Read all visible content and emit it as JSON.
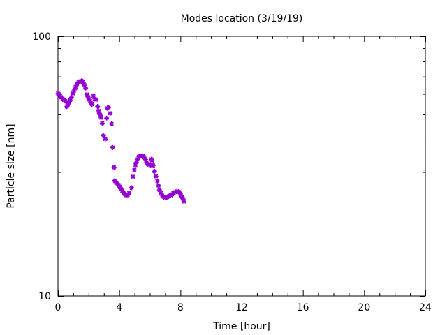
{
  "chart_data": {
    "type": "scatter",
    "title": "Modes location (3/19/19)",
    "xlabel": "Time [hour]",
    "ylabel": "Particle size [nm]",
    "xlim": [
      0,
      24
    ],
    "ylim": [
      10,
      100
    ],
    "yscale": "log",
    "xticks": [
      0,
      4,
      8,
      12,
      16,
      20,
      24
    ],
    "xtick_labels": [
      "0",
      "4",
      "8",
      "12",
      "16",
      "20",
      "24"
    ],
    "yticks": [
      10,
      100
    ],
    "ytick_labels": [
      "10",
      "100"
    ],
    "grid": false,
    "marker_color": "#9400d3",
    "series": [
      {
        "name": "modes",
        "x": [
          0.0,
          0.06,
          0.14,
          0.21,
          0.3,
          0.4,
          0.49,
          0.58,
          0.65,
          0.7,
          0.79,
          0.88,
          0.97,
          1.05,
          1.13,
          1.19,
          1.25,
          1.34,
          1.43,
          1.54,
          1.61,
          1.69,
          1.73,
          1.81,
          1.89,
          1.95,
          2.02,
          2.1,
          2.16,
          2.22,
          2.31,
          2.4,
          2.49,
          2.59,
          2.66,
          2.71,
          2.77,
          2.81,
          2.89,
          2.98,
          3.09,
          3.18,
          3.22,
          3.31,
          3.41,
          3.5,
          3.57,
          3.66,
          3.71,
          3.79,
          3.89,
          3.98,
          4.05,
          4.12,
          4.2,
          4.29,
          4.38,
          4.47,
          4.56,
          4.65,
          4.81,
          4.9,
          4.99,
          5.06,
          5.12,
          5.2,
          5.29,
          5.41,
          5.54,
          5.63,
          5.72,
          5.79,
          5.87,
          5.96,
          6.05,
          6.1,
          6.14,
          6.22,
          6.31,
          6.4,
          6.49,
          6.57,
          6.63,
          6.72,
          6.81,
          6.9,
          7.01,
          7.12,
          7.24,
          7.36,
          7.45,
          7.54,
          7.65,
          7.77,
          7.88,
          7.97,
          8.04,
          8.12,
          8.18,
          8.23
        ],
        "y": [
          60.2,
          59.8,
          59.0,
          58.2,
          57.5,
          56.8,
          56.3,
          53.6,
          54.6,
          55.7,
          56.8,
          58.2,
          60.2,
          61.7,
          63.2,
          64.6,
          65.6,
          66.5,
          67.0,
          67.4,
          66.7,
          65.6,
          64.8,
          63.2,
          59.7,
          58.5,
          57.3,
          56.3,
          55.7,
          54.7,
          59.0,
          57.5,
          57.0,
          53.7,
          51.6,
          50.5,
          49.6,
          48.6,
          46.3,
          41.4,
          40.2,
          48.4,
          52.8,
          53.2,
          50.5,
          46.0,
          37.3,
          31.3,
          27.8,
          27.3,
          27.1,
          26.7,
          26.2,
          25.8,
          25.4,
          25.0,
          24.6,
          24.4,
          24.5,
          24.9,
          26.1,
          28.8,
          30.6,
          31.9,
          32.7,
          33.6,
          34.4,
          34.6,
          34.6,
          34.2,
          33.5,
          32.6,
          32.2,
          32.0,
          31.9,
          33.6,
          33.2,
          31.8,
          30.2,
          28.9,
          27.7,
          26.6,
          25.6,
          24.9,
          24.4,
          24.1,
          23.9,
          24.0,
          24.2,
          24.4,
          24.6,
          24.9,
          25.1,
          25.3,
          25.2,
          24.8,
          24.4,
          24.0,
          23.6,
          23.1
        ]
      }
    ]
  }
}
